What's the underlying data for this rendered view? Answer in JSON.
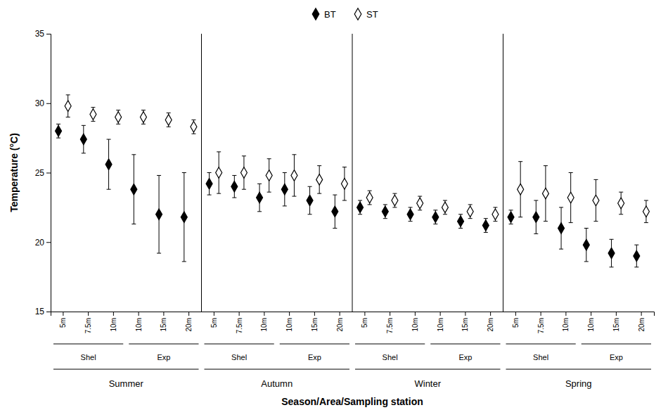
{
  "chart_data": {
    "type": "errorbar",
    "xlabel": "Season/Area/Sampling station",
    "ylabel": "Temperature (°C)",
    "categories": [
      "5m",
      "7.5m",
      "10m",
      "10m",
      "15m",
      "20m",
      "5m",
      "7.5m",
      "10m",
      "10m",
      "15m",
      "20m",
      "5m",
      "7.5m",
      "10m",
      "10m",
      "15m",
      "20m",
      "5m",
      "7.5m",
      "10m",
      "10m",
      "15m",
      "20m"
    ],
    "category_groups": [
      {
        "name": "Summer",
        "subgroups": [
          "Shel",
          "Exp"
        ]
      },
      {
        "name": "Autumn",
        "subgroups": [
          "Shel",
          "Exp"
        ]
      },
      {
        "name": "Winter",
        "subgroups": [
          "Shel",
          "Exp"
        ]
      },
      {
        "name": "Spring",
        "subgroups": [
          "Shel",
          "Exp"
        ]
      }
    ],
    "series": [
      {
        "name": "BT",
        "color": "#000000",
        "marker": "diamond",
        "values": [
          28.0,
          27.4,
          25.6,
          23.8,
          22.0,
          21.8,
          24.2,
          24.0,
          23.2,
          23.8,
          23.0,
          22.2,
          22.5,
          22.2,
          22.0,
          21.8,
          21.5,
          21.2,
          21.8,
          21.8,
          21.0,
          19.8,
          19.2,
          19.0
        ],
        "errors": [
          0.5,
          1.0,
          1.8,
          2.5,
          2.8,
          3.2,
          0.8,
          0.8,
          1.0,
          1.2,
          1.0,
          1.2,
          0.5,
          0.5,
          0.5,
          0.5,
          0.5,
          0.5,
          0.5,
          1.2,
          1.5,
          1.2,
          1.0,
          0.8
        ]
      },
      {
        "name": "ST",
        "color": "#000000",
        "marker": "diamond-open",
        "values": [
          29.8,
          29.2,
          29.0,
          29.0,
          28.8,
          28.3,
          25.0,
          25.0,
          24.8,
          24.8,
          24.5,
          24.2,
          23.2,
          23.0,
          22.8,
          22.5,
          22.2,
          22.0,
          23.8,
          23.5,
          23.2,
          23.0,
          22.8,
          22.2
        ],
        "errors": [
          0.8,
          0.5,
          0.5,
          0.5,
          0.5,
          0.5,
          1.5,
          1.2,
          1.2,
          1.5,
          1.0,
          1.2,
          0.5,
          0.5,
          0.5,
          0.5,
          0.5,
          0.5,
          2.0,
          2.0,
          1.8,
          1.5,
          0.8,
          0.8
        ]
      }
    ],
    "ylim": [
      15,
      35
    ],
    "yticks": [
      15,
      20,
      25,
      30,
      35
    ],
    "grid": false,
    "legend": "top"
  }
}
